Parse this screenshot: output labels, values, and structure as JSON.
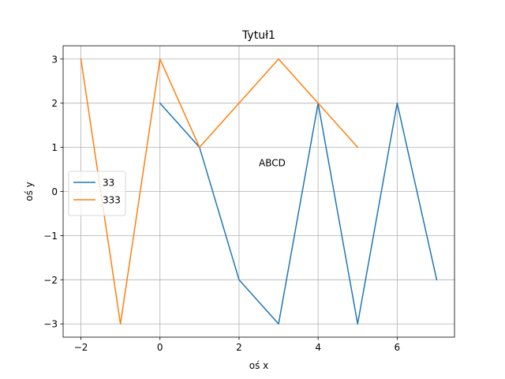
{
  "chart_data": {
    "type": "line",
    "title": "Tytuł1",
    "xlabel": "oś x",
    "ylabel": "oś y",
    "xlim": [
      -2.45,
      7.45
    ],
    "ylim": [
      -3.3,
      3.3
    ],
    "xticks": [
      -2,
      0,
      2,
      4,
      6
    ],
    "xtick_labels": [
      "−2",
      "0",
      "2",
      "4",
      "6"
    ],
    "yticks": [
      -3,
      -2,
      -1,
      0,
      1,
      2,
      3
    ],
    "ytick_labels": [
      "−3",
      "−2",
      "−1",
      "0",
      "1",
      "2",
      "3"
    ],
    "grid": true,
    "legend_position": "center-left",
    "series": [
      {
        "name": "33",
        "color": "#1f77b4",
        "x": [
          0,
          1,
          2,
          3,
          4,
          5,
          6,
          7
        ],
        "y": [
          2,
          1,
          -2,
          -3,
          2,
          -3,
          2,
          -2
        ]
      },
      {
        "name": "333",
        "color": "#ff7f0e",
        "x": [
          -2,
          -1,
          0,
          1,
          2,
          3,
          4,
          5
        ],
        "y": [
          3,
          -3,
          3,
          1,
          2,
          3,
          2,
          1
        ]
      }
    ],
    "annotations": [
      {
        "text": "ABCD",
        "x": 2.5,
        "y": 0.5
      }
    ]
  }
}
